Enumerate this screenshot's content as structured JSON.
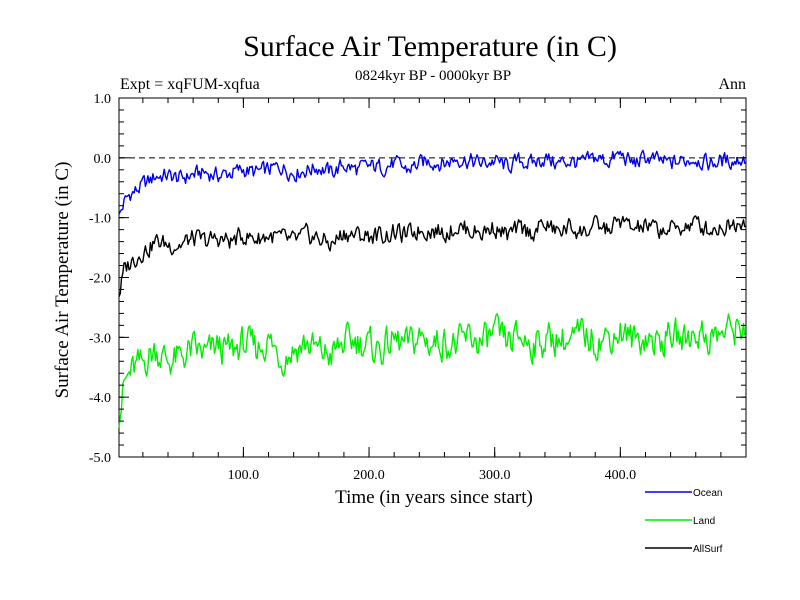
{
  "chart_data": {
    "type": "line",
    "title": "Surface Air Temperature (in C)",
    "subtitle": "0824kyr BP - 0000kyr BP",
    "experiment_label": "Expt = xqFUM-xqfua",
    "season_label": "Ann",
    "xlabel": "Time (in years since start)",
    "ylabel": "Surface Air Temperature (in C)",
    "xlim": [
      1,
      500
    ],
    "ylim": [
      -5.0,
      1.0
    ],
    "x_ticks": [
      100,
      200,
      300,
      400
    ],
    "x_tick_labels": [
      "100.0",
      "200.0",
      "300.0",
      "400.0"
    ],
    "y_ticks": [
      -5,
      -4,
      -3,
      -2,
      -1,
      0,
      1
    ],
    "y_tick_labels": [
      "-5.0",
      "-4.0",
      "-3.0",
      "-2.0",
      "-1.0",
      "0.0",
      "1.0"
    ],
    "reference_line": 0.0,
    "series": [
      {
        "name": "Ocean",
        "color": "#0000ee",
        "x": [
          1,
          5,
          10,
          15,
          20,
          25,
          30,
          40,
          50,
          60,
          70,
          80,
          90,
          100,
          110,
          120,
          130,
          140,
          150,
          160,
          170,
          180,
          190,
          200,
          210,
          220,
          230,
          240,
          250,
          260,
          270,
          280,
          290,
          300,
          310,
          320,
          330,
          340,
          350,
          360,
          370,
          380,
          390,
          400,
          410,
          420,
          430,
          440,
          450,
          460,
          470,
          480,
          490,
          500
        ],
        "values": [
          -1.0,
          -0.75,
          -0.6,
          -0.55,
          -0.45,
          -0.4,
          -0.3,
          -0.3,
          -0.35,
          -0.28,
          -0.25,
          -0.3,
          -0.25,
          -0.2,
          -0.25,
          -0.2,
          -0.15,
          -0.25,
          -0.2,
          -0.15,
          -0.25,
          -0.12,
          -0.2,
          -0.15,
          -0.15,
          -0.1,
          -0.2,
          -0.1,
          -0.05,
          -0.1,
          0.0,
          -0.05,
          -0.1,
          -0.05,
          -0.15,
          -0.05,
          -0.1,
          0.0,
          -0.1,
          -0.05,
          -0.1,
          0.0,
          -0.05,
          0.05,
          -0.1,
          0.0,
          -0.05,
          -0.1,
          -0.05,
          0.0,
          -0.1,
          -0.05,
          -0.05,
          0.0
        ]
      },
      {
        "name": "Land",
        "color": "#00ee00",
        "x": [
          1,
          5,
          10,
          15,
          20,
          25,
          30,
          40,
          50,
          60,
          70,
          80,
          90,
          100,
          110,
          120,
          130,
          140,
          150,
          160,
          170,
          180,
          190,
          200,
          210,
          220,
          230,
          240,
          250,
          260,
          270,
          280,
          290,
          300,
          310,
          320,
          330,
          340,
          350,
          360,
          370,
          380,
          390,
          400,
          410,
          420,
          430,
          440,
          450,
          460,
          470,
          480,
          490,
          500
        ],
        "values": [
          -4.3,
          -3.8,
          -3.6,
          -3.5,
          -3.45,
          -3.3,
          -3.2,
          -3.4,
          -3.35,
          -3.2,
          -3.3,
          -3.15,
          -3.25,
          -3.1,
          -3.2,
          -3.05,
          -3.35,
          -3.2,
          -3.1,
          -3.25,
          -3.3,
          -3.1,
          -3.05,
          -3.15,
          -3.2,
          -3.05,
          -3.15,
          -3.0,
          -3.1,
          -3.05,
          -3.15,
          -3.0,
          -3.1,
          -2.95,
          -3.1,
          -3.0,
          -3.1,
          -3.05,
          -3.0,
          -3.1,
          -2.95,
          -3.05,
          -3.0,
          -2.9,
          -3.05,
          -3.0,
          -3.1,
          -2.95,
          -3.05,
          -2.9,
          -3.0,
          -2.95,
          -2.85,
          -2.8
        ]
      },
      {
        "name": "AllSurf",
        "color": "#000000",
        "x": [
          1,
          5,
          10,
          15,
          20,
          25,
          30,
          40,
          50,
          60,
          70,
          80,
          90,
          100,
          110,
          120,
          130,
          140,
          150,
          160,
          170,
          180,
          190,
          200,
          210,
          220,
          230,
          240,
          250,
          260,
          270,
          280,
          290,
          300,
          310,
          320,
          330,
          340,
          350,
          360,
          370,
          380,
          390,
          400,
          410,
          420,
          430,
          440,
          450,
          460,
          470,
          480,
          490,
          500
        ],
        "values": [
          -2.3,
          -1.9,
          -1.75,
          -1.65,
          -1.55,
          -1.5,
          -1.4,
          -1.45,
          -1.45,
          -1.35,
          -1.4,
          -1.35,
          -1.4,
          -1.3,
          -1.35,
          -1.3,
          -1.35,
          -1.4,
          -1.3,
          -1.35,
          -1.45,
          -1.25,
          -1.3,
          -1.3,
          -1.3,
          -1.25,
          -1.3,
          -1.2,
          -1.2,
          -1.25,
          -1.15,
          -1.2,
          -1.25,
          -1.15,
          -1.3,
          -1.2,
          -1.25,
          -1.1,
          -1.25,
          -1.15,
          -1.25,
          -1.15,
          -1.2,
          -1.05,
          -1.2,
          -1.15,
          -1.2,
          -1.2,
          -1.15,
          -1.1,
          -1.2,
          -1.15,
          -1.1,
          -1.0
        ]
      }
    ],
    "legend_position": "bottom-right"
  }
}
